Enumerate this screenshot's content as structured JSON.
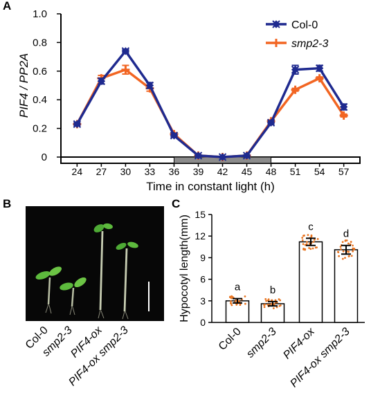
{
  "panels": {
    "a": "A",
    "b": "B",
    "c": "C"
  },
  "panel_b": {
    "sample_labels": [
      "Col-0",
      "smp2-3",
      "PIF4-ox",
      "PIF4-ox smp2-3"
    ]
  },
  "chart_data": [
    {
      "type": "line",
      "xlabel": "Time in constant light (h)",
      "ylabel": "PIF4 / PP2A",
      "categories": [
        "24",
        "27",
        "30",
        "33",
        "36",
        "39",
        "42",
        "45",
        "48",
        "51",
        "54",
        "57"
      ],
      "x": [
        24,
        27,
        30,
        33,
        36,
        39,
        42,
        45,
        48,
        51,
        54,
        57
      ],
      "ylim": [
        0,
        1.0
      ],
      "yticks": [
        "0",
        "0.2",
        "0.4",
        "0.6",
        "0.8",
        "1.0"
      ],
      "series": [
        {
          "name": "Col-0",
          "color": "#1f2a8f",
          "marker": "x-diamond",
          "values": [
            0.23,
            0.53,
            0.74,
            0.5,
            0.15,
            0.01,
            0.0,
            0.01,
            0.24,
            0.61,
            0.62,
            0.35
          ],
          "errors": [
            0.01,
            0.02,
            0.01,
            0.02,
            0.01,
            0.005,
            0.005,
            0.005,
            0.01,
            0.03,
            0.02,
            0.02
          ]
        },
        {
          "name": "smp2-3",
          "color": "#f26522",
          "marker": "plus",
          "values": [
            0.23,
            0.55,
            0.61,
            0.48,
            0.16,
            0.01,
            0.0,
            0.01,
            0.25,
            0.47,
            0.55,
            0.29
          ],
          "errors": [
            0.01,
            0.02,
            0.03,
            0.02,
            0.01,
            0.005,
            0.005,
            0.005,
            0.01,
            0.01,
            0.01,
            0.01
          ]
        }
      ],
      "dark_period": [
        36,
        48
      ],
      "legend": "top-right",
      "grid": false
    },
    {
      "type": "bar",
      "ylabel": "Hypocotyl length(mm)",
      "categories": [
        "Col-0",
        "smp2-3",
        "PIF4-ox",
        "PIF4-ox smp2-3"
      ],
      "values": [
        3.0,
        2.6,
        11.2,
        10.1
      ],
      "errors": [
        0.3,
        0.3,
        0.5,
        0.6
      ],
      "letters": [
        "a",
        "b",
        "c",
        "d"
      ],
      "ylim": [
        0,
        15
      ],
      "yticks": [
        "0",
        "3",
        "6",
        "9",
        "12",
        "15"
      ],
      "bar_color": "#ffffff",
      "point_color": "#e8731f"
    }
  ]
}
